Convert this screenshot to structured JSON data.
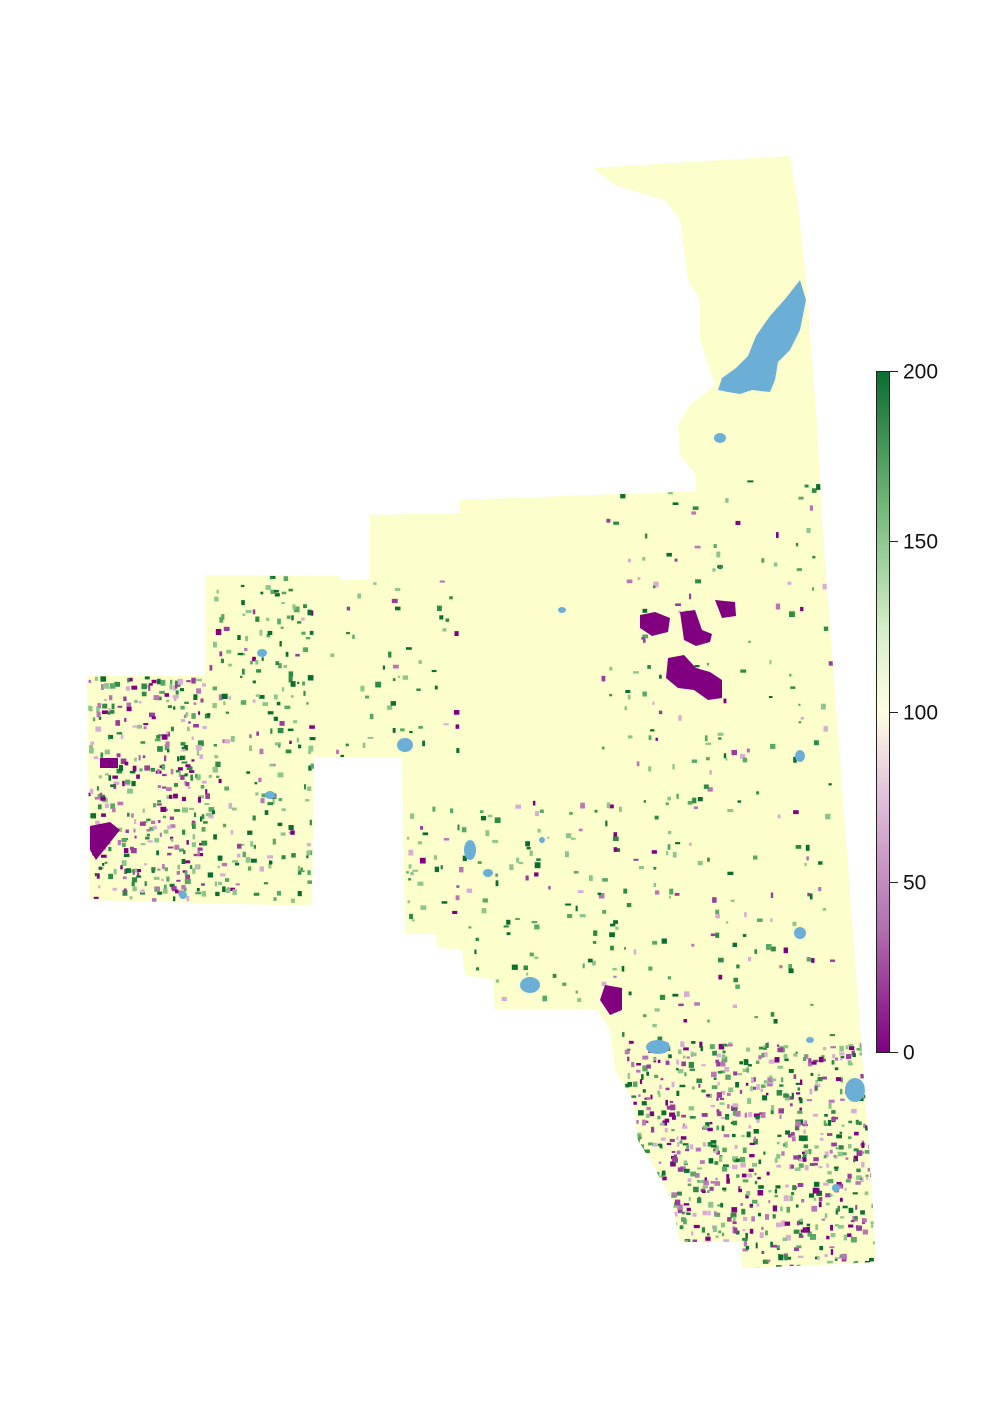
{
  "colors": {
    "background": "#ffffff",
    "region_fill": "#fcfecb",
    "water": "#6baed6",
    "high": "#0b6e2f",
    "mid": "#fffde2",
    "low": "#800080"
  },
  "legend": {
    "min": 0,
    "max": 200,
    "tick_labels": [
      "0",
      "50",
      "100",
      "150",
      "200"
    ]
  }
}
